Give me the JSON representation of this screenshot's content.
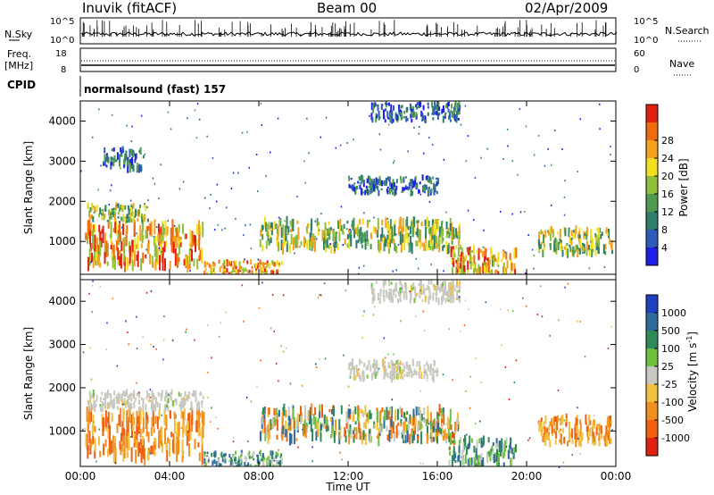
{
  "header": {
    "station": "Inuvik (fitACF)",
    "beam": "Beam 00",
    "date": "02/Apr/2009"
  },
  "panels": {
    "nsky": {
      "left_label": "N.Sky",
      "top_tick": "10^5",
      "bottom_tick": "10^0",
      "right_label": "N.Search",
      "right_top_tick": "10^5",
      "right_bottom_tick": "10^0"
    },
    "freq": {
      "left_label_line1": "Freq.",
      "left_label_line2": "[MHz]",
      "tick_top": "18",
      "tick_bottom": "8",
      "right_tick_top": "60",
      "right_tick_bottom": "0",
      "right_label": "Nave"
    },
    "cpid": {
      "label": "CPID",
      "program": "normalsound (fast) 157"
    }
  },
  "chart_data": [
    {
      "type": "heatmap",
      "quantity": "power",
      "ylabel": "Slant Range [km]",
      "ylim": [
        180,
        4500
      ],
      "yticks": [
        "1000",
        "2000",
        "3000",
        "4000"
      ],
      "xlim_hours": [
        0,
        24
      ],
      "colorbar": {
        "label": "Power [dB]",
        "ticks": [
          "4",
          "8",
          "12",
          "16",
          "20",
          "24",
          "28"
        ],
        "colors": [
          "#1e1ee6",
          "#2e5bb8",
          "#2f7d6a",
          "#4f9a4f",
          "#8fbf3a",
          "#f0e020",
          "#f4a020",
          "#f06a10",
          "#e02010"
        ]
      },
      "echo_regions": [
        {
          "t": [
            0.2,
            5.5
          ],
          "r": [
            400,
            1400
          ],
          "level": "high"
        },
        {
          "t": [
            5.5,
            9.0
          ],
          "r": [
            180,
            500
          ],
          "level": "high"
        },
        {
          "t": [
            8.0,
            17.0
          ],
          "r": [
            800,
            1500
          ],
          "level": "medium"
        },
        {
          "t": [
            16.5,
            19.5
          ],
          "r": [
            180,
            800
          ],
          "level": "high"
        },
        {
          "t": [
            20.5,
            23.8
          ],
          "r": [
            700,
            1300
          ],
          "level": "medium"
        },
        {
          "t": [
            0.3,
            3.0
          ],
          "r": [
            1500,
            1900
          ],
          "level": "medium"
        },
        {
          "t": [
            1.0,
            2.8
          ],
          "r": [
            2800,
            3300
          ],
          "level": "low"
        },
        {
          "t": [
            12.0,
            16.0
          ],
          "r": [
            2200,
            2600
          ],
          "level": "low"
        },
        {
          "t": [
            13.0,
            17.0
          ],
          "r": [
            4000,
            4450
          ],
          "level": "low"
        }
      ]
    },
    {
      "type": "heatmap",
      "quantity": "velocity",
      "ylabel": "Slant Range [km]",
      "ylim": [
        180,
        4500
      ],
      "yticks": [
        "1000",
        "2000",
        "3000",
        "4000"
      ],
      "xlim_hours": [
        0,
        24
      ],
      "xlabel": "Time UT",
      "xticks": [
        "00:00",
        "04:00",
        "08:00",
        "12:00",
        "16:00",
        "20:00",
        "00:00"
      ],
      "colorbar": {
        "label": "Velocity [m s^-1]",
        "ticks": [
          "1000",
          "500",
          "100",
          "25",
          "-25",
          "-100",
          "-500",
          "-1000"
        ],
        "colors": [
          "#2040c0",
          "#2f6a9a",
          "#2f8a5a",
          "#70c040",
          "#c8c8c0",
          "#f0c040",
          "#f09020",
          "#f06010",
          "#e02010"
        ]
      },
      "echo_regions": [
        {
          "t": [
            0.2,
            5.5
          ],
          "r": [
            400,
            1400
          ],
          "level": "negative"
        },
        {
          "t": [
            5.5,
            9.0
          ],
          "r": [
            180,
            500
          ],
          "level": "positive"
        },
        {
          "t": [
            8.0,
            17.0
          ],
          "r": [
            800,
            1500
          ],
          "level": "mixed"
        },
        {
          "t": [
            16.5,
            19.5
          ],
          "r": [
            180,
            800
          ],
          "level": "positive"
        },
        {
          "t": [
            20.5,
            23.8
          ],
          "r": [
            700,
            1300
          ],
          "level": "negative"
        },
        {
          "t": [
            0.3,
            5.5
          ],
          "r": [
            1500,
            1900
          ],
          "level": "ground"
        },
        {
          "t": [
            12.0,
            16.0
          ],
          "r": [
            2200,
            2600
          ],
          "level": "ground"
        },
        {
          "t": [
            13.0,
            17.0
          ],
          "r": [
            4000,
            4450
          ],
          "level": "ground"
        }
      ]
    }
  ]
}
